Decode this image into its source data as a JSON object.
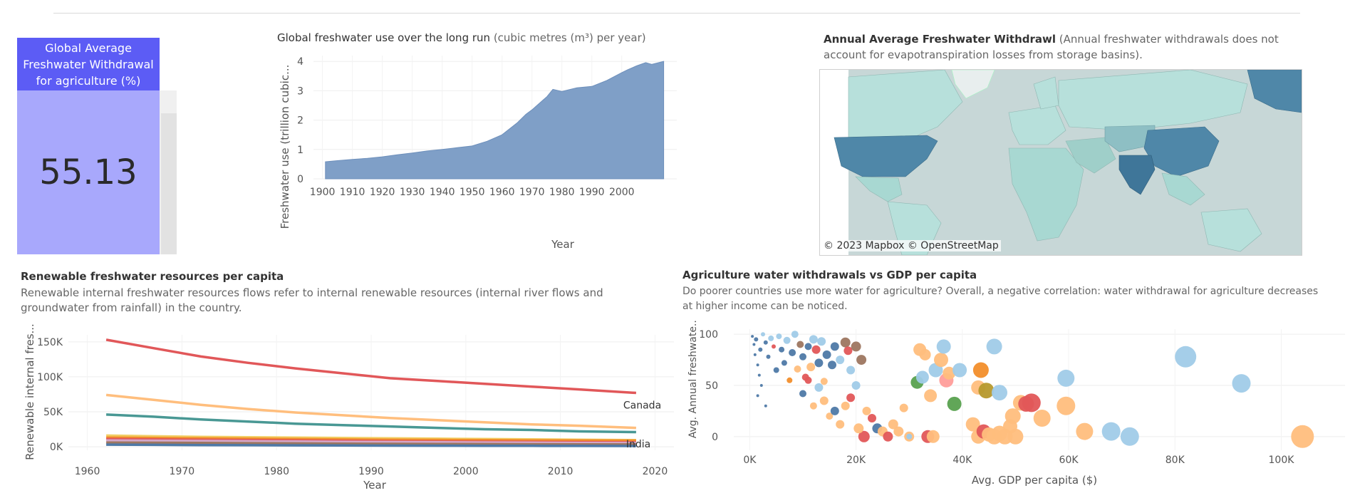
{
  "kpi": {
    "title": "Global Average Freshwater Withdrawal for agriculture (%)",
    "value": "55.13",
    "fill_fraction": 0.5513,
    "header_color": "#5c5cf5",
    "body_color": "#a8a8fc"
  },
  "freshwater_chart": {
    "title": "Global freshwater use over the long run",
    "subtitle": "(cubic metres (m³) per year)",
    "ylabel": "Freshwater use (trillion cubic...",
    "xlabel": "Year",
    "x_ticks": [
      "1900",
      "1910",
      "1920",
      "1930",
      "1940",
      "1950",
      "1960",
      "1970",
      "1980",
      "1990",
      "2000"
    ],
    "y_ticks": [
      "0",
      "1",
      "2",
      "3",
      "4"
    ],
    "color": "#7f9fc7"
  },
  "map": {
    "title": "Annual Average Freshwater Withdrawl",
    "subtitle": "(Annual freshwater withdrawals does not account for evapotranspiration losses from storage basins).",
    "credit_mapbox": "© 2023 Mapbox",
    "credit_osm": "© OpenStreetMap",
    "ocean_color": "#c7d7d7",
    "land_color": "#b7e0db",
    "high_color": "#4f87a8"
  },
  "renewable_chart": {
    "title": "Renewable freshwater resources per capita",
    "description": "Renewable internal freshwater resources flows refer to internal renewable resources (internal river flows and groundwater from rainfall) in the country.",
    "ylabel": "Renewable internal fres...",
    "xlabel": "Year",
    "y_ticks": [
      "150K",
      "100K",
      "50K",
      "0K"
    ],
    "x_ticks": [
      "1960",
      "1970",
      "1980",
      "1990",
      "2000",
      "2010",
      "2020"
    ],
    "labels": {
      "canada": "Canada",
      "india": "India"
    }
  },
  "scatter_chart": {
    "title": "Agriculture water withdrawals vs GDP per capita",
    "description": "Do poorer countries use more water for agriculture? Overall, a negative correlation: water withdrawal for agriculture decreases at higher income can be noticed.",
    "ylabel": "Avg. Annual freshwate...",
    "xlabel": "Avg. GDP per capita ($)",
    "x_ticks": [
      "0K",
      "20K",
      "40K",
      "60K",
      "80K",
      "100K"
    ],
    "y_ticks": [
      "100",
      "50",
      "0"
    ]
  },
  "chart_data": [
    {
      "type": "area",
      "title": "Global freshwater use over the long run",
      "xlabel": "Year",
      "ylabel": "Freshwater use (trillion cubic...",
      "xlim": [
        1897,
        2016
      ],
      "ylim": [
        0,
        4.2
      ],
      "x": [
        1901,
        1905,
        1910,
        1915,
        1920,
        1925,
        1930,
        1935,
        1940,
        1945,
        1950,
        1955,
        1960,
        1965,
        1968,
        1970,
        1975,
        1977,
        1980,
        1985,
        1990,
        1995,
        2000,
        2002,
        2005,
        2008,
        2010,
        2014
      ],
      "y": [
        0.58,
        0.62,
        0.66,
        0.7,
        0.75,
        0.82,
        0.88,
        0.95,
        1.0,
        1.06,
        1.12,
        1.28,
        1.5,
        1.9,
        2.2,
        2.35,
        2.8,
        3.05,
        2.98,
        3.1,
        3.15,
        3.35,
        3.62,
        3.72,
        3.85,
        3.96,
        3.9,
        4.0
      ]
    },
    {
      "type": "line",
      "title": "Renewable freshwater resources per capita",
      "xlabel": "Year",
      "ylabel": "Renewable internal fres...",
      "xlim": [
        1958,
        2022
      ],
      "ylim": [
        -5000,
        160000
      ],
      "x": [
        1962,
        1967,
        1972,
        1977,
        1982,
        1987,
        1992,
        1997,
        2002,
        2007,
        2012,
        2018
      ],
      "series": [
        {
          "name": "Canada",
          "color": "#e15759",
          "values": [
            153000,
            141000,
            129000,
            120000,
            112000,
            105000,
            98000,
            94000,
            90000,
            86000,
            82000,
            77000
          ]
        },
        {
          "color": "#ffbe7d",
          "values": [
            74000,
            67000,
            60000,
            54000,
            49000,
            45000,
            41000,
            38000,
            35000,
            32000,
            30000,
            27000
          ]
        },
        {
          "color": "#499894",
          "values": [
            46000,
            43000,
            39000,
            36000,
            33000,
            31000,
            29000,
            27000,
            25000,
            24000,
            22000,
            21000
          ]
        },
        {
          "color": "#f1ce63",
          "values": [
            16000,
            15000,
            14000,
            13500,
            13000,
            12500,
            12000,
            11500,
            11000,
            10500,
            10000,
            9500
          ]
        },
        {
          "color": "#f28e2b",
          "values": [
            13000,
            12500,
            12000,
            11500,
            11000,
            10500,
            10000,
            9800,
            9500,
            9200,
            9000,
            8800
          ]
        },
        {
          "color": "#e15759",
          "values": [
            11000,
            10500,
            10000,
            9500,
            9000,
            8500,
            8000,
            7600,
            7200,
            6900,
            6600,
            6300
          ]
        },
        {
          "color": "#d4a6c8",
          "values": [
            9000,
            8600,
            8200,
            7800,
            7400,
            7000,
            6700,
            6400,
            6100,
            5800,
            5500,
            5300
          ]
        },
        {
          "color": "#9d7660",
          "values": [
            6000,
            5700,
            5400,
            5100,
            4800,
            4500,
            4200,
            4000,
            3800,
            3600,
            3400,
            3200
          ]
        },
        {
          "name": "India",
          "color": "#4e79a7",
          "values": [
            3000,
            2700,
            2400,
            2200,
            2000,
            1800,
            1600,
            1500,
            1400,
            1300,
            1200,
            1100
          ]
        }
      ]
    },
    {
      "type": "scatter",
      "title": "Agriculture water withdrawals vs GDP per capita",
      "xlabel": "Avg. GDP per capita ($)",
      "ylabel": "Avg. Annual freshwate...",
      "xlim": [
        -3000,
        112000
      ],
      "ylim": [
        -5,
        105
      ],
      "points": [
        {
          "x": 500,
          "y": 98,
          "s": 2,
          "c": "#4e79a7"
        },
        {
          "x": 800,
          "y": 90,
          "s": 2,
          "c": "#4e79a7"
        },
        {
          "x": 1000,
          "y": 80,
          "s": 2,
          "c": "#4e79a7"
        },
        {
          "x": 1200,
          "y": 95,
          "s": 3,
          "c": "#4e79a7"
        },
        {
          "x": 1500,
          "y": 70,
          "s": 2,
          "c": "#4e79a7"
        },
        {
          "x": 2000,
          "y": 85,
          "s": 3,
          "c": "#4e79a7"
        },
        {
          "x": 1800,
          "y": 60,
          "s": 2,
          "c": "#4e79a7"
        },
        {
          "x": 2500,
          "y": 100,
          "s": 3,
          "c": "#a0cbe8"
        },
        {
          "x": 3000,
          "y": 92,
          "s": 3,
          "c": "#4e79a7"
        },
        {
          "x": 2200,
          "y": 50,
          "s": 2,
          "c": "#4e79a7"
        },
        {
          "x": 3500,
          "y": 78,
          "s": 3,
          "c": "#4e79a7"
        },
        {
          "x": 4000,
          "y": 96,
          "s": 4,
          "c": "#a0cbe8"
        },
        {
          "x": 4500,
          "y": 88,
          "s": 3,
          "c": "#e15759"
        },
        {
          "x": 1500,
          "y": 40,
          "s": 2,
          "c": "#4e79a7"
        },
        {
          "x": 3000,
          "y": 30,
          "s": 2,
          "c": "#4e79a7"
        },
        {
          "x": 5000,
          "y": 65,
          "s": 4,
          "c": "#4e79a7"
        },
        {
          "x": 5500,
          "y": 98,
          "s": 4,
          "c": "#a0cbe8"
        },
        {
          "x": 6000,
          "y": 85,
          "s": 4,
          "c": "#4e79a7"
        },
        {
          "x": 6500,
          "y": 72,
          "s": 4,
          "c": "#4e79a7"
        },
        {
          "x": 7000,
          "y": 94,
          "s": 5,
          "c": "#a0cbe8"
        },
        {
          "x": 7500,
          "y": 55,
          "s": 4,
          "c": "#f28e2b"
        },
        {
          "x": 8000,
          "y": 82,
          "s": 5,
          "c": "#4e79a7"
        },
        {
          "x": 8500,
          "y": 100,
          "s": 5,
          "c": "#a0cbe8"
        },
        {
          "x": 9000,
          "y": 66,
          "s": 5,
          "c": "#ffbe7d"
        },
        {
          "x": 9500,
          "y": 90,
          "s": 5,
          "c": "#9d7660"
        },
        {
          "x": 10000,
          "y": 78,
          "s": 5,
          "c": "#4e79a7"
        },
        {
          "x": 10500,
          "y": 58,
          "s": 5,
          "c": "#e15759"
        },
        {
          "x": 11000,
          "y": 88,
          "s": 5,
          "c": "#4e79a7"
        },
        {
          "x": 11500,
          "y": 68,
          "s": 6,
          "c": "#ffbe7d"
        },
        {
          "x": 12000,
          "y": 95,
          "s": 6,
          "c": "#a0cbe8"
        },
        {
          "x": 12500,
          "y": 85,
          "s": 6,
          "c": "#e15759"
        },
        {
          "x": 13000,
          "y": 72,
          "s": 6,
          "c": "#4e79a7"
        },
        {
          "x": 13500,
          "y": 93,
          "s": 6,
          "c": "#a0cbe8"
        },
        {
          "x": 14000,
          "y": 54,
          "s": 5,
          "c": "#ffbe7d"
        },
        {
          "x": 14500,
          "y": 80,
          "s": 6,
          "c": "#4e79a7"
        },
        {
          "x": 15500,
          "y": 70,
          "s": 6,
          "c": "#4e79a7"
        },
        {
          "x": 16000,
          "y": 88,
          "s": 6,
          "c": "#4e79a7"
        },
        {
          "x": 17000,
          "y": 75,
          "s": 6,
          "c": "#a0cbe8"
        },
        {
          "x": 18000,
          "y": 92,
          "s": 7,
          "c": "#9d7660"
        },
        {
          "x": 18500,
          "y": 84,
          "s": 6,
          "c": "#e15759"
        },
        {
          "x": 19000,
          "y": 65,
          "s": 6,
          "c": "#a0cbe8"
        },
        {
          "x": 20000,
          "y": 88,
          "s": 7,
          "c": "#9d7660"
        },
        {
          "x": 21000,
          "y": 75,
          "s": 7,
          "c": "#9d7660"
        },
        {
          "x": 10000,
          "y": 42,
          "s": 5,
          "c": "#4e79a7"
        },
        {
          "x": 11000,
          "y": 55,
          "s": 5,
          "c": "#e15759"
        },
        {
          "x": 12000,
          "y": 30,
          "s": 5,
          "c": "#ffbe7d"
        },
        {
          "x": 13000,
          "y": 48,
          "s": 6,
          "c": "#a0cbe8"
        },
        {
          "x": 14000,
          "y": 35,
          "s": 6,
          "c": "#ffbe7d"
        },
        {
          "x": 15000,
          "y": 20,
          "s": 5,
          "c": "#ffbe7d"
        },
        {
          "x": 16000,
          "y": 25,
          "s": 6,
          "c": "#4e79a7"
        },
        {
          "x": 17000,
          "y": 12,
          "s": 6,
          "c": "#ffbe7d"
        },
        {
          "x": 18000,
          "y": 30,
          "s": 6,
          "c": "#ffbe7d"
        },
        {
          "x": 19000,
          "y": 38,
          "s": 6,
          "c": "#e15759"
        },
        {
          "x": 20000,
          "y": 50,
          "s": 6,
          "c": "#a0cbe8"
        },
        {
          "x": 22000,
          "y": 25,
          "s": 6,
          "c": "#ffbe7d"
        },
        {
          "x": 23000,
          "y": 18,
          "s": 6,
          "c": "#e15759"
        },
        {
          "x": 24000,
          "y": 8,
          "s": 7,
          "c": "#4e79a7"
        },
        {
          "x": 25000,
          "y": 5,
          "s": 7,
          "c": "#ffbe7d"
        },
        {
          "x": 26000,
          "y": 0,
          "s": 7,
          "c": "#e15759"
        },
        {
          "x": 27000,
          "y": 12,
          "s": 7,
          "c": "#ffbe7d"
        },
        {
          "x": 28000,
          "y": 5,
          "s": 7,
          "c": "#ffbe7d"
        },
        {
          "x": 30000,
          "y": 0,
          "s": 7,
          "c": "#ffbe7d"
        },
        {
          "x": 29000,
          "y": 28,
          "s": 6,
          "c": "#ffbe7d"
        },
        {
          "x": 21500,
          "y": 0,
          "s": 8,
          "c": "#e15759"
        },
        {
          "x": 20500,
          "y": 8,
          "s": 7,
          "c": "#ffbe7d"
        },
        {
          "x": 30000,
          "y": 0,
          "s": 4,
          "c": "#a0cbe8"
        },
        {
          "x": 32000,
          "y": 85,
          "s": 9,
          "c": "#ffbe7d"
        },
        {
          "x": 33000,
          "y": 80,
          "s": 8,
          "c": "#ffbe7d"
        },
        {
          "x": 31500,
          "y": 53,
          "s": 9,
          "c": "#59a14f"
        },
        {
          "x": 32500,
          "y": 58,
          "s": 9,
          "c": "#a0cbe8"
        },
        {
          "x": 34000,
          "y": 40,
          "s": 9,
          "c": "#ffbe7d"
        },
        {
          "x": 35000,
          "y": 65,
          "s": 10,
          "c": "#a0cbe8"
        },
        {
          "x": 36000,
          "y": 75,
          "s": 10,
          "c": "#ffbe7d"
        },
        {
          "x": 36500,
          "y": 88,
          "s": 10,
          "c": "#a0cbe8"
        },
        {
          "x": 37000,
          "y": 55,
          "s": 10,
          "c": "#ff9d9a"
        },
        {
          "x": 37500,
          "y": 62,
          "s": 9,
          "c": "#ffbe7d"
        },
        {
          "x": 38500,
          "y": 32,
          "s": 10,
          "c": "#59a14f"
        },
        {
          "x": 39500,
          "y": 65,
          "s": 10,
          "c": "#a0cbe8"
        },
        {
          "x": 33500,
          "y": 0,
          "s": 9,
          "c": "#e15759"
        },
        {
          "x": 34500,
          "y": 0,
          "s": 9,
          "c": "#ffbe7d"
        },
        {
          "x": 42000,
          "y": 12,
          "s": 10,
          "c": "#ffbe7d"
        },
        {
          "x": 43000,
          "y": 0,
          "s": 10,
          "c": "#ffbe7d"
        },
        {
          "x": 44000,
          "y": 5,
          "s": 10,
          "c": "#e15759"
        },
        {
          "x": 45000,
          "y": 2,
          "s": 10,
          "c": "#ffbe7d"
        },
        {
          "x": 46000,
          "y": 0,
          "s": 11,
          "c": "#ffbe7d"
        },
        {
          "x": 47000,
          "y": 3,
          "s": 11,
          "c": "#ffbe7d"
        },
        {
          "x": 48000,
          "y": 0,
          "s": 11,
          "c": "#ffbe7d"
        },
        {
          "x": 49000,
          "y": 10,
          "s": 10,
          "c": "#ffbe7d"
        },
        {
          "x": 50000,
          "y": 0,
          "s": 11,
          "c": "#ffbe7d"
        },
        {
          "x": 43000,
          "y": 48,
          "s": 10,
          "c": "#ffbe7d"
        },
        {
          "x": 43500,
          "y": 65,
          "s": 11,
          "c": "#f28e2b"
        },
        {
          "x": 44500,
          "y": 45,
          "s": 11,
          "c": "#b6992d"
        },
        {
          "x": 46000,
          "y": 88,
          "s": 11,
          "c": "#a0cbe8"
        },
        {
          "x": 47000,
          "y": 43,
          "s": 11,
          "c": "#a0cbe8"
        },
        {
          "x": 49500,
          "y": 20,
          "s": 11,
          "c": "#ffbe7d"
        },
        {
          "x": 51000,
          "y": 33,
          "s": 11,
          "c": "#ffbe7d"
        },
        {
          "x": 53000,
          "y": 33,
          "s": 13,
          "c": "#e15759"
        },
        {
          "x": 52000,
          "y": 32,
          "s": 11,
          "c": "#e15759"
        },
        {
          "x": 55000,
          "y": 18,
          "s": 12,
          "c": "#ffbe7d"
        },
        {
          "x": 59500,
          "y": 30,
          "s": 13,
          "c": "#ffbe7d"
        },
        {
          "x": 59500,
          "y": 57,
          "s": 12,
          "c": "#a0cbe8"
        },
        {
          "x": 63000,
          "y": 5,
          "s": 12,
          "c": "#ffbe7d"
        },
        {
          "x": 68000,
          "y": 5,
          "s": 13,
          "c": "#a0cbe8"
        },
        {
          "x": 71500,
          "y": 0,
          "s": 13,
          "c": "#a0cbe8"
        },
        {
          "x": 82000,
          "y": 78,
          "s": 15,
          "c": "#a0cbe8"
        },
        {
          "x": 92500,
          "y": 52,
          "s": 13,
          "c": "#a0cbe8"
        },
        {
          "x": 104000,
          "y": 0,
          "s": 16,
          "c": "#ffbe7d"
        }
      ]
    }
  ]
}
